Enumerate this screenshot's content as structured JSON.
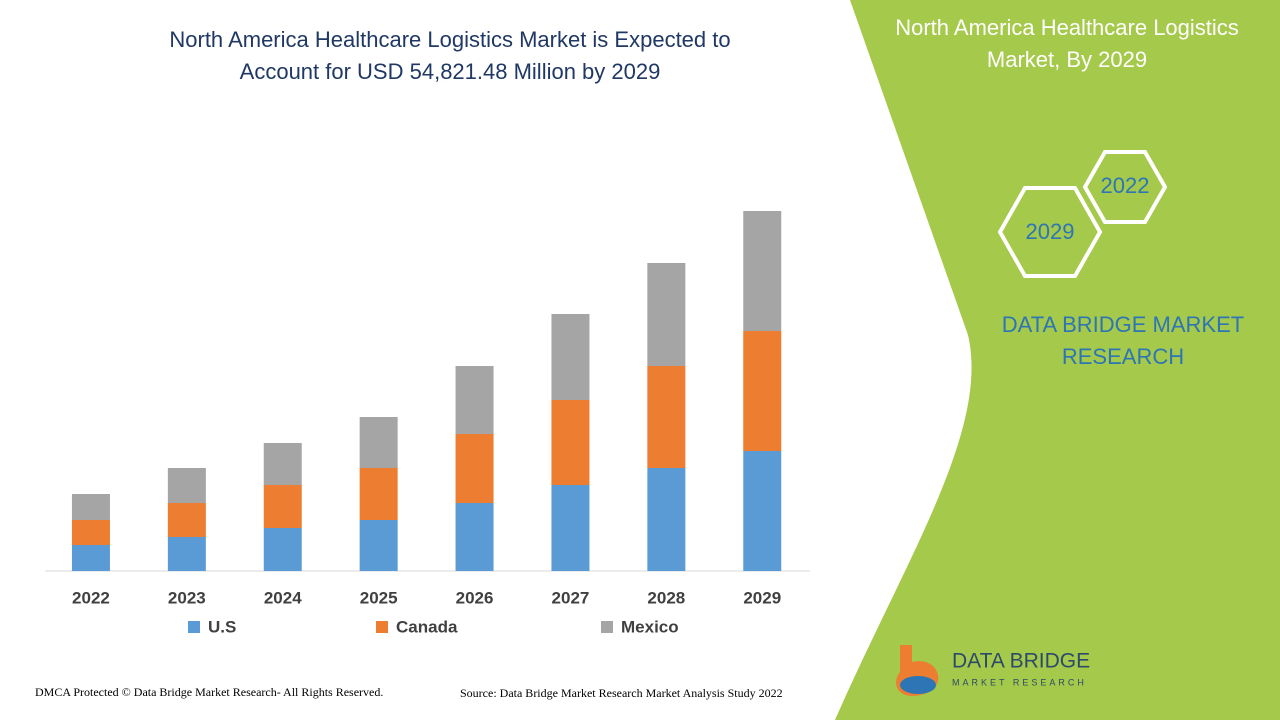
{
  "chart_data": {
    "type": "bar",
    "stacked": true,
    "title": "North America Healthcare Logistics Market is Expected to Account for USD 54,821.48 Million by 2029",
    "categories": [
      "2022",
      "2023",
      "2024",
      "2025",
      "2026",
      "2027",
      "2028",
      "2029"
    ],
    "series": [
      {
        "name": "U.S",
        "color": "#5b9bd5",
        "values": [
          26,
          34,
          43,
          51,
          68,
          86,
          103,
          120
        ]
      },
      {
        "name": "Canada",
        "color": "#ed7d31",
        "values": [
          25,
          34,
          43,
          52,
          69,
          85,
          102,
          120
        ]
      },
      {
        "name": "Mexico",
        "color": "#a5a5a5",
        "values": [
          26,
          35,
          42,
          51,
          68,
          86,
          103,
          120
        ]
      }
    ]
  },
  "panel": {
    "title": "North America Healthcare Logistics Market, By 2029",
    "hex_top": "2022",
    "hex_bottom": "2029",
    "brand": "DATA BRIDGE MARKET RESEARCH"
  },
  "logo": {
    "name": "DATA BRIDGE",
    "tagline": "MARKET RESEARCH"
  },
  "footer": {
    "left": "DMCA Protected © Data Bridge Market Research- All Rights Reserved.",
    "right": "Source: Data Bridge Market Research Market Analysis Study 2022"
  }
}
